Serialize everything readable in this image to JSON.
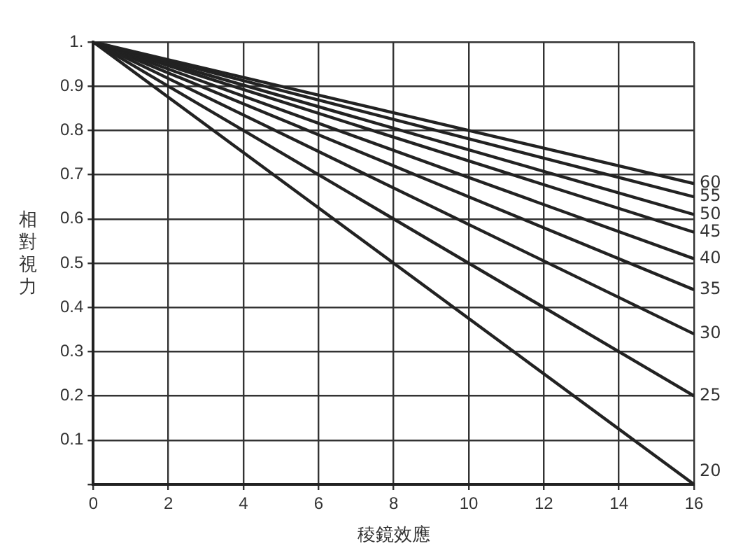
{
  "chart_data": {
    "type": "line",
    "xlabel": "稜鏡效應",
    "ylabel": "相對視力",
    "x": [
      0,
      16
    ],
    "series": [
      {
        "name": "60",
        "color": "#222222",
        "values": [
          1,
          0.68
        ]
      },
      {
        "name": "55",
        "color": "#222222",
        "values": [
          1,
          0.65
        ]
      },
      {
        "name": "50",
        "color": "#222222",
        "values": [
          1,
          0.61
        ]
      },
      {
        "name": "45",
        "color": "#222222",
        "values": [
          1,
          0.57
        ]
      },
      {
        "name": "40",
        "color": "#222222",
        "values": [
          1,
          0.51
        ]
      },
      {
        "name": "35",
        "color": "#222222",
        "values": [
          1,
          0.44
        ]
      },
      {
        "name": "30",
        "color": "#222222",
        "values": [
          1,
          0.34
        ]
      },
      {
        "name": "25",
        "color": "#222222",
        "values": [
          1,
          0.2
        ]
      },
      {
        "name": "20",
        "color": "#222222",
        "values": [
          1,
          0
        ]
      }
    ],
    "xlim": [
      0,
      16
    ],
    "ylim": [
      0,
      1
    ],
    "xticks": [
      0,
      2,
      4,
      6,
      8,
      10,
      12,
      14,
      16
    ],
    "yticks": [
      {
        "value": 0,
        "label": null
      },
      0.1,
      0.2,
      0.3,
      0.4,
      0.5,
      0.6,
      0.7,
      0.8,
      0.9,
      {
        "value": 1,
        "label": "1."
      }
    ],
    "grid": true,
    "legend": false,
    "marker": "none",
    "line_style": "solid"
  }
}
